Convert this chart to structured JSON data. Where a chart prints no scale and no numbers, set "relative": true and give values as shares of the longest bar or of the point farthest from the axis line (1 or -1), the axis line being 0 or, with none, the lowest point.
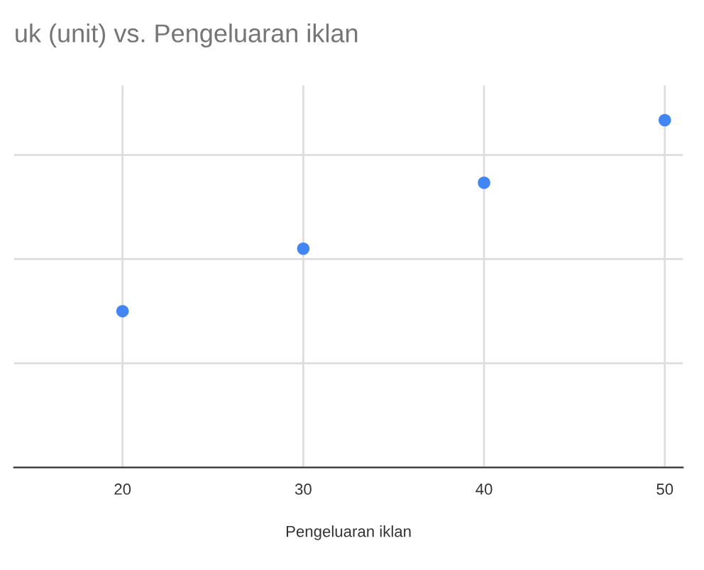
{
  "chart_data": {
    "type": "scatter",
    "title": "uk (unit) vs. Pengeluaran iklan",
    "xlabel": "Pengeluaran iklan",
    "x": [
      20,
      30,
      40,
      50
    ],
    "series": [
      {
        "color": "#4285f4",
        "values": [
          0.45,
          0.63,
          0.82,
          1.0
        ]
      }
    ],
    "relative": true,
    "xlim": [
      14,
      51
    ],
    "xticks": [
      20,
      30,
      40,
      50
    ],
    "grid": true,
    "marker": "circle"
  }
}
